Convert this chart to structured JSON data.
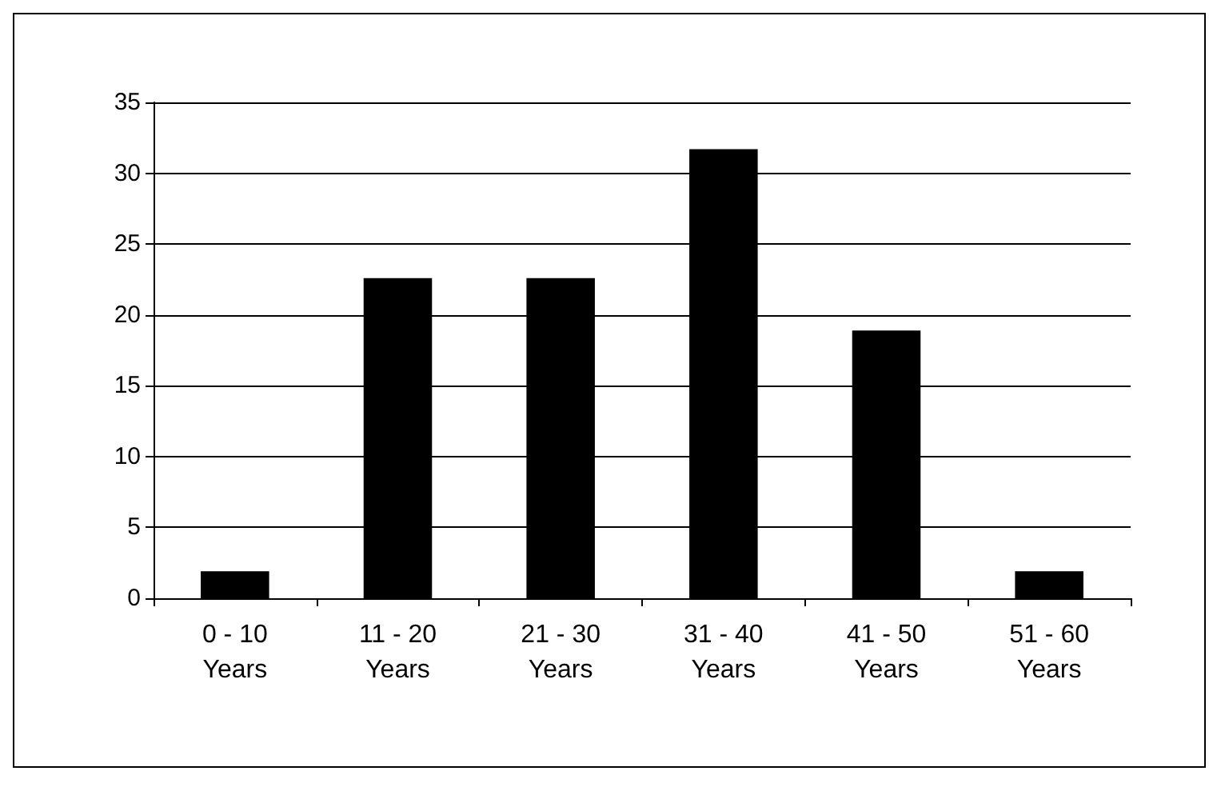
{
  "chart_data": {
    "type": "bar",
    "categories": [
      "0 - 10\nYears",
      "11 - 20\nYears",
      "21 - 30\nYears",
      "31 - 40\nYears",
      "41 - 50\nYears",
      "51 - 60\nYears"
    ],
    "values": [
      1.9,
      22.6,
      22.6,
      31.7,
      18.9,
      1.9
    ],
    "color": "#000000",
    "ylim": [
      0,
      35
    ],
    "yticks": [
      0,
      5,
      10,
      15,
      20,
      25,
      30,
      35
    ],
    "grid": "y"
  }
}
